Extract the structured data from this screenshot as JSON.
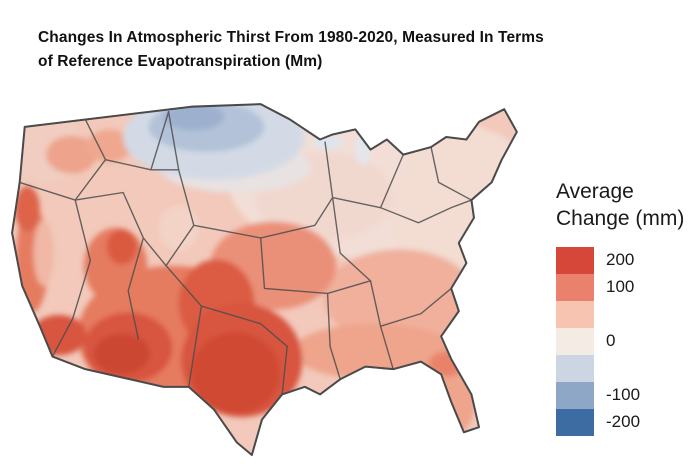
{
  "title": {
    "line1": "Changes In Atmospheric Thirst From 1980-2020, Measured In Terms",
    "line2": "of Reference Evapotranspiration (Mm)"
  },
  "legend": {
    "title_line1": "Average",
    "title_line2": "Change (mm)",
    "swatches": [
      {
        "label": "200",
        "color": "#d6473a"
      },
      {
        "label": "100",
        "color": "#e9816c"
      },
      {
        "label": "",
        "color": "#f6c4b1"
      },
      {
        "label": "0",
        "color": "#f4ebe5"
      },
      {
        "label": "",
        "color": "#ccd6e3"
      },
      {
        "label": "-100",
        "color": "#8ea7c6"
      },
      {
        "label": "-200",
        "color": "#3d6ca3"
      }
    ]
  },
  "chart_data": {
    "type": "choropleth-map",
    "title": "Changes In Atmospheric Thirst From 1980-2020, Measured In Terms of Reference Evapotranspiration (Mm)",
    "legend_title": "Average Change (mm)",
    "scale_ticks": [
      200,
      100,
      0,
      -100,
      -200
    ],
    "scale_range_mm": [
      -200,
      200
    ],
    "high_color": "#d6473a",
    "low_color": "#3d6ca3"
  }
}
